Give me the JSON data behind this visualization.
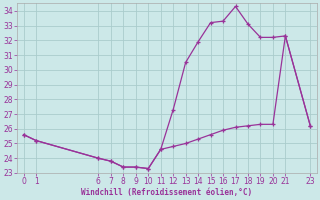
{
  "xlabel": "Windchill (Refroidissement éolien,°C)",
  "bg_color": "#cce8e8",
  "grid_color": "#aacccc",
  "line_color": "#993399",
  "spine_color": "#aaaaaa",
  "ylim": [
    23,
    34.5
  ],
  "xlim": [
    -0.5,
    23.5
  ],
  "yticks": [
    23,
    24,
    25,
    26,
    27,
    28,
    29,
    30,
    31,
    32,
    33,
    34
  ],
  "xticks": [
    0,
    1,
    6,
    7,
    8,
    9,
    10,
    11,
    12,
    13,
    14,
    15,
    16,
    17,
    18,
    19,
    20,
    21,
    23
  ],
  "series1_x": [
    0,
    1,
    6,
    7,
    8,
    9,
    10,
    11,
    12,
    13,
    14,
    15,
    16,
    17,
    18,
    19,
    20,
    21,
    23
  ],
  "series1_y": [
    25.6,
    25.2,
    24.0,
    23.8,
    23.4,
    23.4,
    23.3,
    24.6,
    27.3,
    30.5,
    31.9,
    33.2,
    33.3,
    34.3,
    33.1,
    32.2,
    32.2,
    32.3,
    26.2
  ],
  "series2_x": [
    0,
    1,
    6,
    7,
    8,
    9,
    10,
    11,
    12,
    13,
    14,
    15,
    16,
    17,
    18,
    19,
    20,
    21,
    23
  ],
  "series2_y": [
    25.6,
    25.2,
    24.0,
    23.8,
    23.4,
    23.4,
    23.3,
    24.6,
    24.8,
    25.0,
    25.3,
    25.6,
    25.9,
    26.1,
    26.2,
    26.3,
    26.3,
    32.3,
    26.2
  ]
}
